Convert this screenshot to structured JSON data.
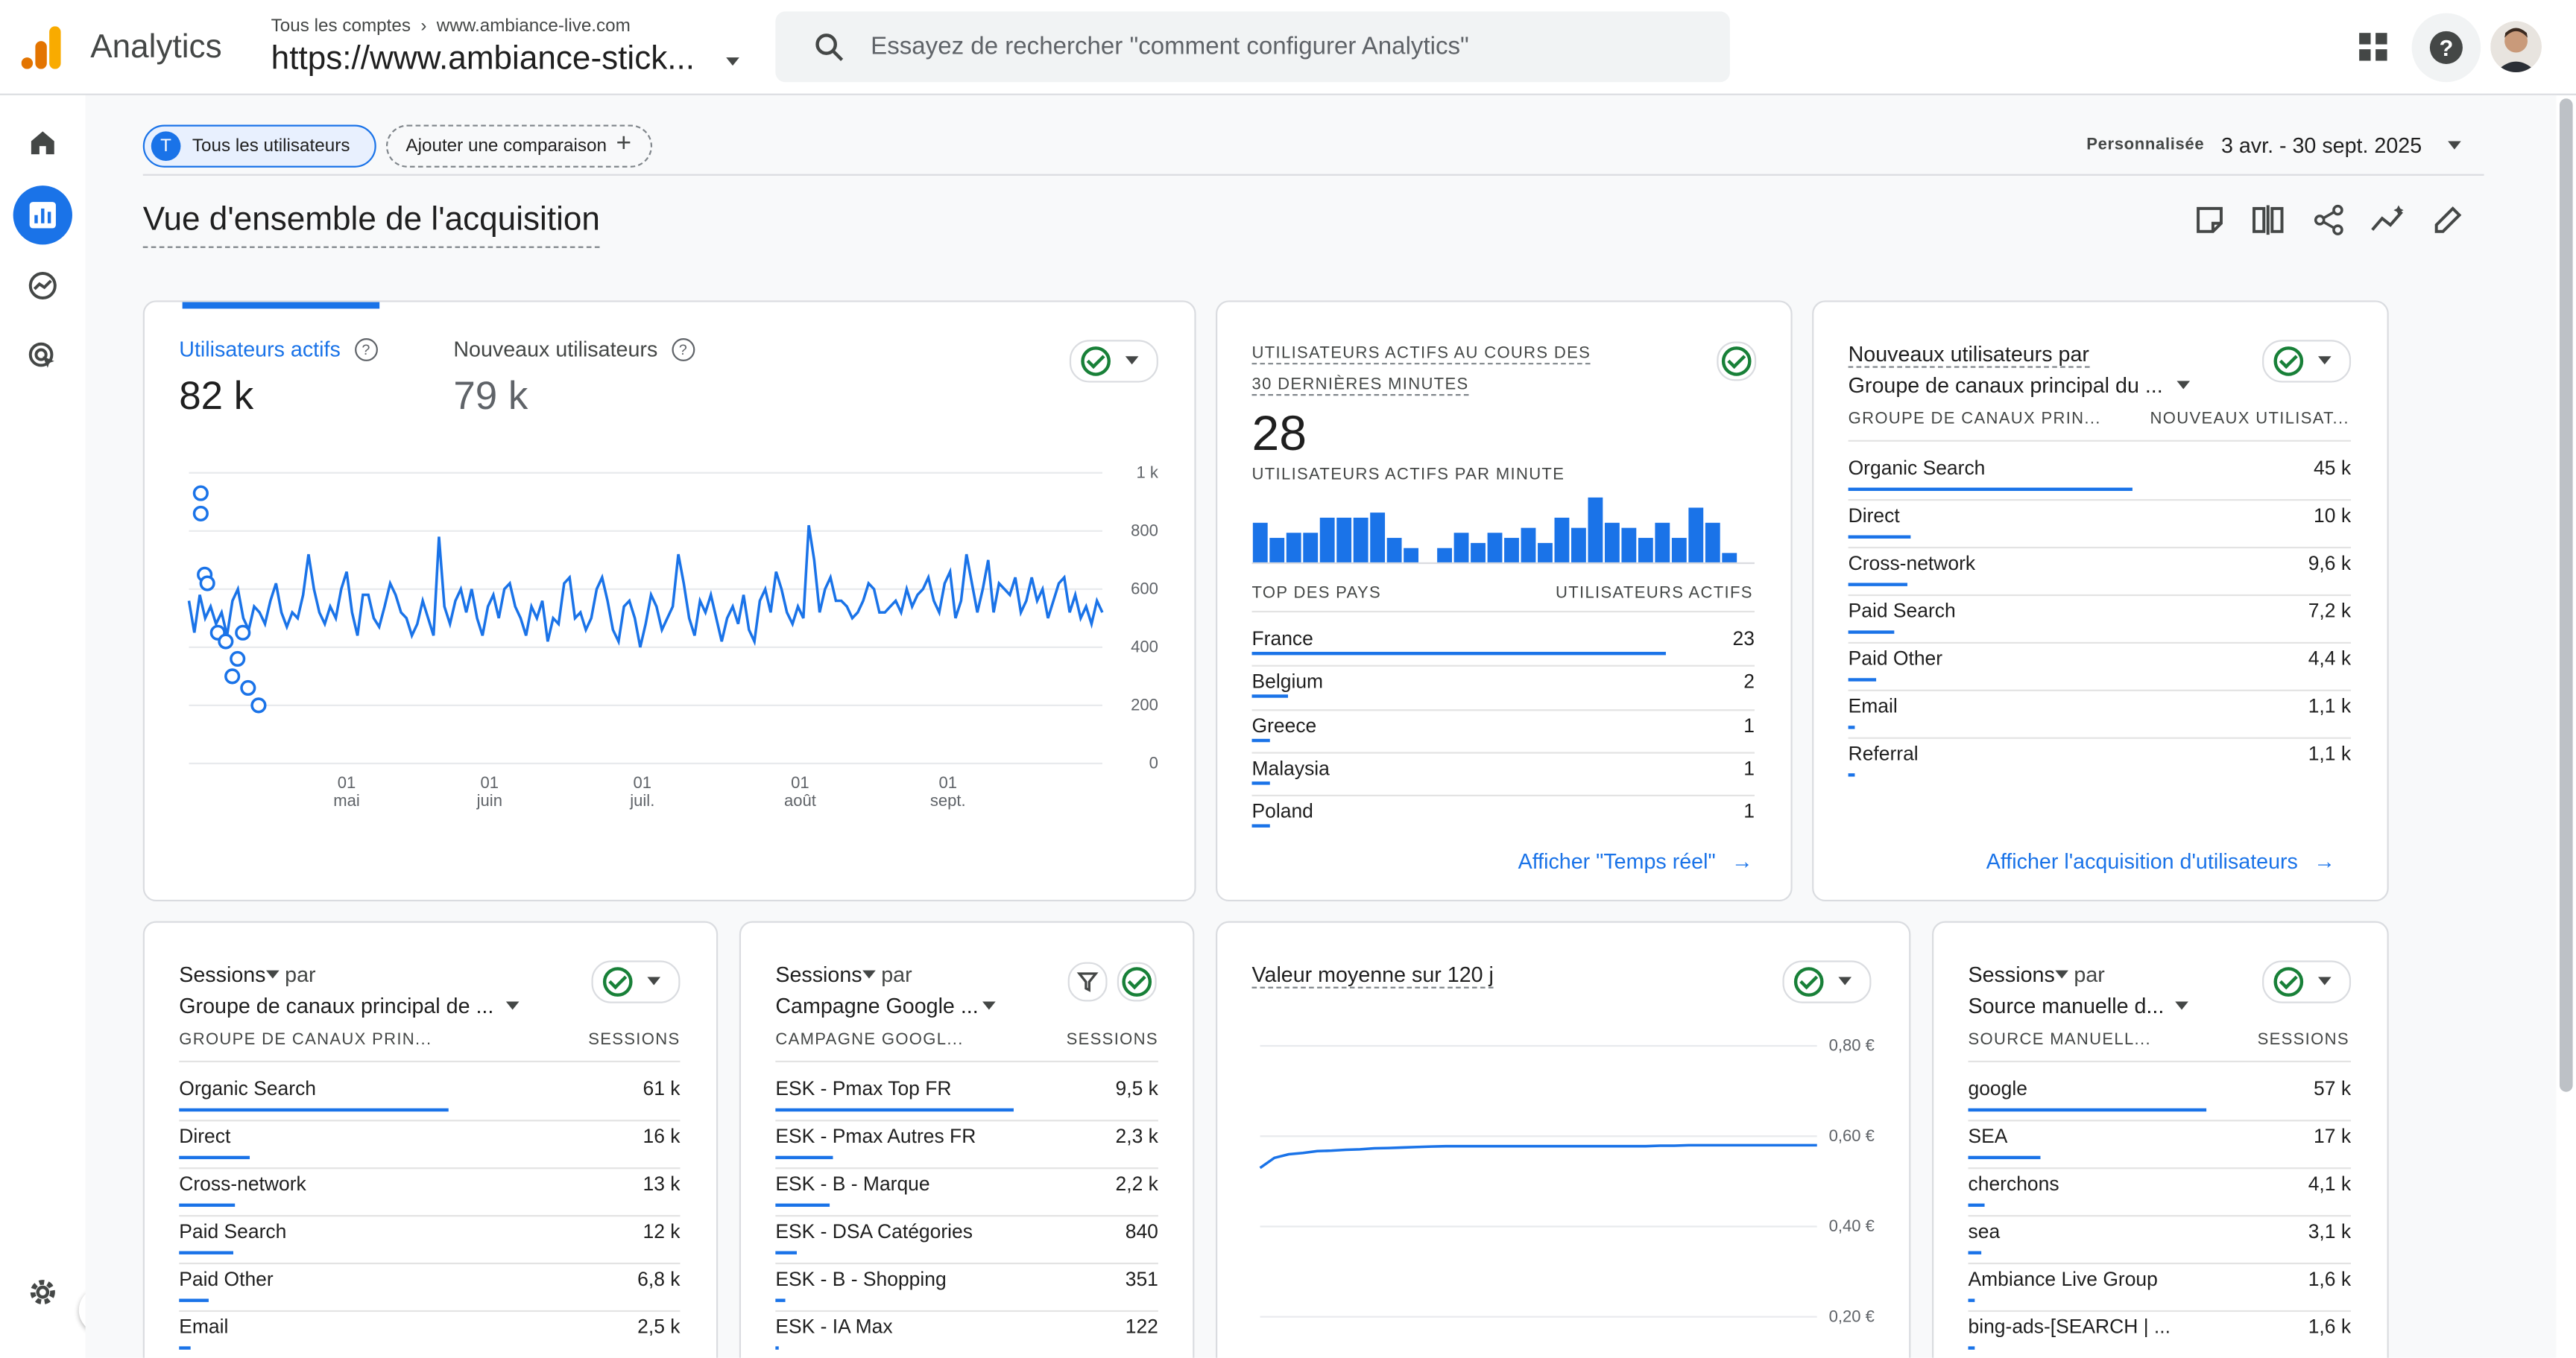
{
  "app": {
    "title": "Analytics",
    "accounts_label": "Tous les comptes",
    "property": "www.ambiance-live.com",
    "url": "https://www.ambiance-stick..."
  },
  "search": {
    "placeholder": "Essayez de rechercher \"comment configurer Analytics\""
  },
  "colors": {
    "accent": "#1a73e8",
    "logo_orange": "#f9ab00",
    "logo_dark": "#e37400",
    "success": "#188038"
  },
  "icons": [
    "analytics-logo-icon",
    "search-icon",
    "apps-grid-icon",
    "help-icon",
    "avatar",
    "home-icon",
    "reports-icon",
    "explore-icon",
    "advertising-icon",
    "settings-icon",
    "expand-sidebar-icon"
  ],
  "filters": {
    "segment_letter": "T",
    "segment": "Tous les utilisateurs",
    "add_comparison": "Ajouter une comparaison",
    "date_type": "Personnalisée",
    "date_range": "3 avr. - 30 sept. 2025"
  },
  "page": {
    "title": "Vue d'ensemble de l'acquisition"
  },
  "card_users": {
    "tab1_label": "Utilisateurs actifs",
    "tab1_value": "82 k",
    "tab2_label": "Nouveaux utilisateurs",
    "tab2_value": "79 k"
  },
  "chart_data": [
    {
      "type": "line",
      "title": "Utilisateurs actifs",
      "yticks": [
        "1 k",
        "800",
        "600",
        "400",
        "200",
        "0"
      ],
      "ylim": [
        0,
        1000
      ],
      "xticks": [
        {
          "day": "01",
          "month": "mai"
        },
        {
          "day": "01",
          "month": "juin"
        },
        {
          "day": "01",
          "month": "juil."
        },
        {
          "day": "01",
          "month": "août"
        },
        {
          "day": "01",
          "month": "sept."
        }
      ],
      "series": [
        {
          "values": [
            560,
            450,
            580,
            500,
            540,
            480,
            520,
            440,
            560,
            600,
            500,
            460,
            540,
            520,
            480,
            560,
            620,
            520,
            470,
            520,
            500,
            580,
            720,
            600,
            520,
            480,
            540,
            500,
            600,
            660,
            520,
            440,
            580,
            580,
            500,
            470,
            540,
            620,
            580,
            520,
            500,
            440,
            480,
            560,
            500,
            440,
            780,
            540,
            480,
            560,
            600,
            520,
            600,
            500,
            440,
            540,
            580,
            500,
            600,
            620,
            540,
            500,
            440,
            540,
            500,
            560,
            420,
            500,
            480,
            620,
            640,
            500,
            520,
            460,
            500,
            600,
            640,
            560,
            460,
            420,
            540,
            560,
            500,
            400,
            480,
            580,
            540,
            460,
            500,
            540,
            720,
            620,
            500,
            440,
            560,
            520,
            580,
            500,
            420,
            500,
            540,
            480,
            580,
            460,
            420,
            560,
            600,
            520,
            660,
            600,
            520,
            480,
            540,
            500,
            820,
            700,
            520,
            600,
            640,
            560,
            560,
            540,
            500,
            520,
            560,
            620,
            600,
            520,
            520,
            540,
            560,
            520,
            600,
            540,
            580,
            600,
            640,
            560,
            520,
            620,
            660,
            500,
            560,
            720,
            620,
            520,
            600,
            700,
            520,
            620,
            600,
            580,
            640,
            520,
            560,
            640,
            560,
            600,
            500,
            560,
            620,
            640,
            520,
            580,
            500,
            540,
            480,
            560,
            520
          ]
        }
      ],
      "anomaly_markers": [
        [
          0.9,
          0.07
        ],
        [
          0.9,
          0.14
        ],
        [
          1.2,
          0.35
        ],
        [
          1.4,
          0.38
        ],
        [
          2.2,
          0.55
        ],
        [
          2.8,
          0.58
        ],
        [
          3.3,
          0.7
        ],
        [
          3.7,
          0.64
        ],
        [
          4.1,
          0.55
        ],
        [
          4.5,
          0.74
        ],
        [
          5.3,
          0.8
        ]
      ]
    },
    {
      "type": "bar",
      "title": "Utilisateurs actifs par minute",
      "values": [
        8,
        5,
        6,
        6,
        9,
        9,
        9,
        10,
        5,
        3,
        0,
        3,
        6,
        4,
        6,
        5,
        7,
        4,
        9,
        7,
        13,
        8,
        7,
        5,
        8,
        5,
        11,
        8,
        2,
        0
      ]
    },
    {
      "type": "line",
      "title": "Valeur moyenne sur 120 j",
      "yticks": [
        "0,80 €",
        "0,60 €",
        "0,40 €",
        "0,20 €"
      ],
      "ylim": [
        0.2,
        0.8
      ],
      "series": [
        {
          "values": [
            0.53,
            0.552,
            0.56,
            0.563,
            0.567,
            0.568,
            0.57,
            0.571,
            0.573,
            0.574,
            0.575,
            0.576,
            0.577,
            0.578,
            0.578,
            0.578,
            0.578,
            0.578,
            0.578,
            0.578,
            0.578,
            0.578,
            0.578,
            0.578,
            0.578,
            0.578,
            0.578,
            0.578,
            0.579,
            0.579,
            0.58,
            0.58,
            0.58,
            0.58,
            0.58,
            0.58,
            0.58,
            0.58,
            0.58,
            0.58
          ]
        }
      ]
    }
  ],
  "card_realtime": {
    "title_line1": "UTILISATEURS ACTIFS AU COURS DES",
    "title_line2": "30 DERNIÈRES MINUTES",
    "value": "28",
    "per_minute_label": "UTILISATEURS ACTIFS PAR MINUTE",
    "col_country": "TOP DES PAYS",
    "col_users": "UTILISATEURS ACTIFS",
    "rows": [
      {
        "label": "France",
        "value": "23",
        "ratio": 1.0
      },
      {
        "label": "Belgium",
        "value": "2",
        "ratio": 0.087
      },
      {
        "label": "Greece",
        "value": "1",
        "ratio": 0.043
      },
      {
        "label": "Malaysia",
        "value": "1",
        "ratio": 0.043
      },
      {
        "label": "Poland",
        "value": "1",
        "ratio": 0.043
      }
    ],
    "link": "Afficher \"Temps réel\""
  },
  "card_new_users": {
    "title_line1": "Nouveaux utilisateurs par",
    "dimension": "Groupe de canaux principal du ...",
    "col1": "GROUPE DE CANAUX PRIN...",
    "col2": "NOUVEAUX UTILISAT...",
    "rows": [
      {
        "label": "Organic Search",
        "value": "45 k",
        "ratio": 1.0
      },
      {
        "label": "Direct",
        "value": "10 k",
        "ratio": 0.22
      },
      {
        "label": "Cross-network",
        "value": "9,6 k",
        "ratio": 0.21
      },
      {
        "label": "Paid Search",
        "value": "7,2 k",
        "ratio": 0.16
      },
      {
        "label": "Paid Other",
        "value": "4,4 k",
        "ratio": 0.1
      },
      {
        "label": "Email",
        "value": "1,1 k",
        "ratio": 0.025
      },
      {
        "label": "Referral",
        "value": "1,1 k",
        "ratio": 0.025
      }
    ],
    "link": "Afficher l'acquisition d'utilisateurs"
  },
  "card_sessions_channel": {
    "metric": "Sessions",
    "by": "par",
    "dimension": "Groupe de canaux principal de ...",
    "col1": "GROUPE DE CANAUX PRIN...",
    "col2": "SESSIONS",
    "rows": [
      {
        "label": "Organic Search",
        "value": "61 k",
        "ratio": 1.0
      },
      {
        "label": "Direct",
        "value": "16 k",
        "ratio": 0.26
      },
      {
        "label": "Cross-network",
        "value": "13 k",
        "ratio": 0.21
      },
      {
        "label": "Paid Search",
        "value": "12 k",
        "ratio": 0.2
      },
      {
        "label": "Paid Other",
        "value": "6,8 k",
        "ratio": 0.11
      },
      {
        "label": "Email",
        "value": "2,5 k",
        "ratio": 0.04
      }
    ]
  },
  "card_sessions_campaign": {
    "metric": "Sessions",
    "by": "par",
    "dimension": "Campagne Google ...",
    "col1": "CAMPAGNE GOOGL...",
    "col2": "SESSIONS",
    "rows": [
      {
        "label": "ESK - Pmax Top FR",
        "value": "9,5 k",
        "ratio": 1.0
      },
      {
        "label": "ESK - Pmax Autres FR",
        "value": "2,3 k",
        "ratio": 0.24
      },
      {
        "label": "ESK - B - Marque",
        "value": "2,2 k",
        "ratio": 0.23
      },
      {
        "label": "ESK - DSA Catégories",
        "value": "840",
        "ratio": 0.09
      },
      {
        "label": "ESK - B - Shopping",
        "value": "351",
        "ratio": 0.04
      },
      {
        "label": "ESK - IA Max",
        "value": "122",
        "ratio": 0.013
      }
    ]
  },
  "card_ltv": {
    "title": "Valeur moyenne sur 120 j"
  },
  "card_sessions_source": {
    "metric": "Sessions",
    "by": "par",
    "dimension": "Source manuelle d...",
    "col1": "SOURCE MANUELL...",
    "col2": "SESSIONS",
    "rows": [
      {
        "label": "google",
        "value": "57 k",
        "ratio": 1.0
      },
      {
        "label": "SEA",
        "value": "17 k",
        "ratio": 0.3
      },
      {
        "label": "cherchons",
        "value": "4,1 k",
        "ratio": 0.07
      },
      {
        "label": "sea",
        "value": "3,1 k",
        "ratio": 0.055
      },
      {
        "label": "Ambiance Live Group",
        "value": "1,6 k",
        "ratio": 0.028
      },
      {
        "label": "bing-ads-[SEARCH | ...",
        "value": "1,6 k",
        "ratio": 0.028
      }
    ]
  }
}
